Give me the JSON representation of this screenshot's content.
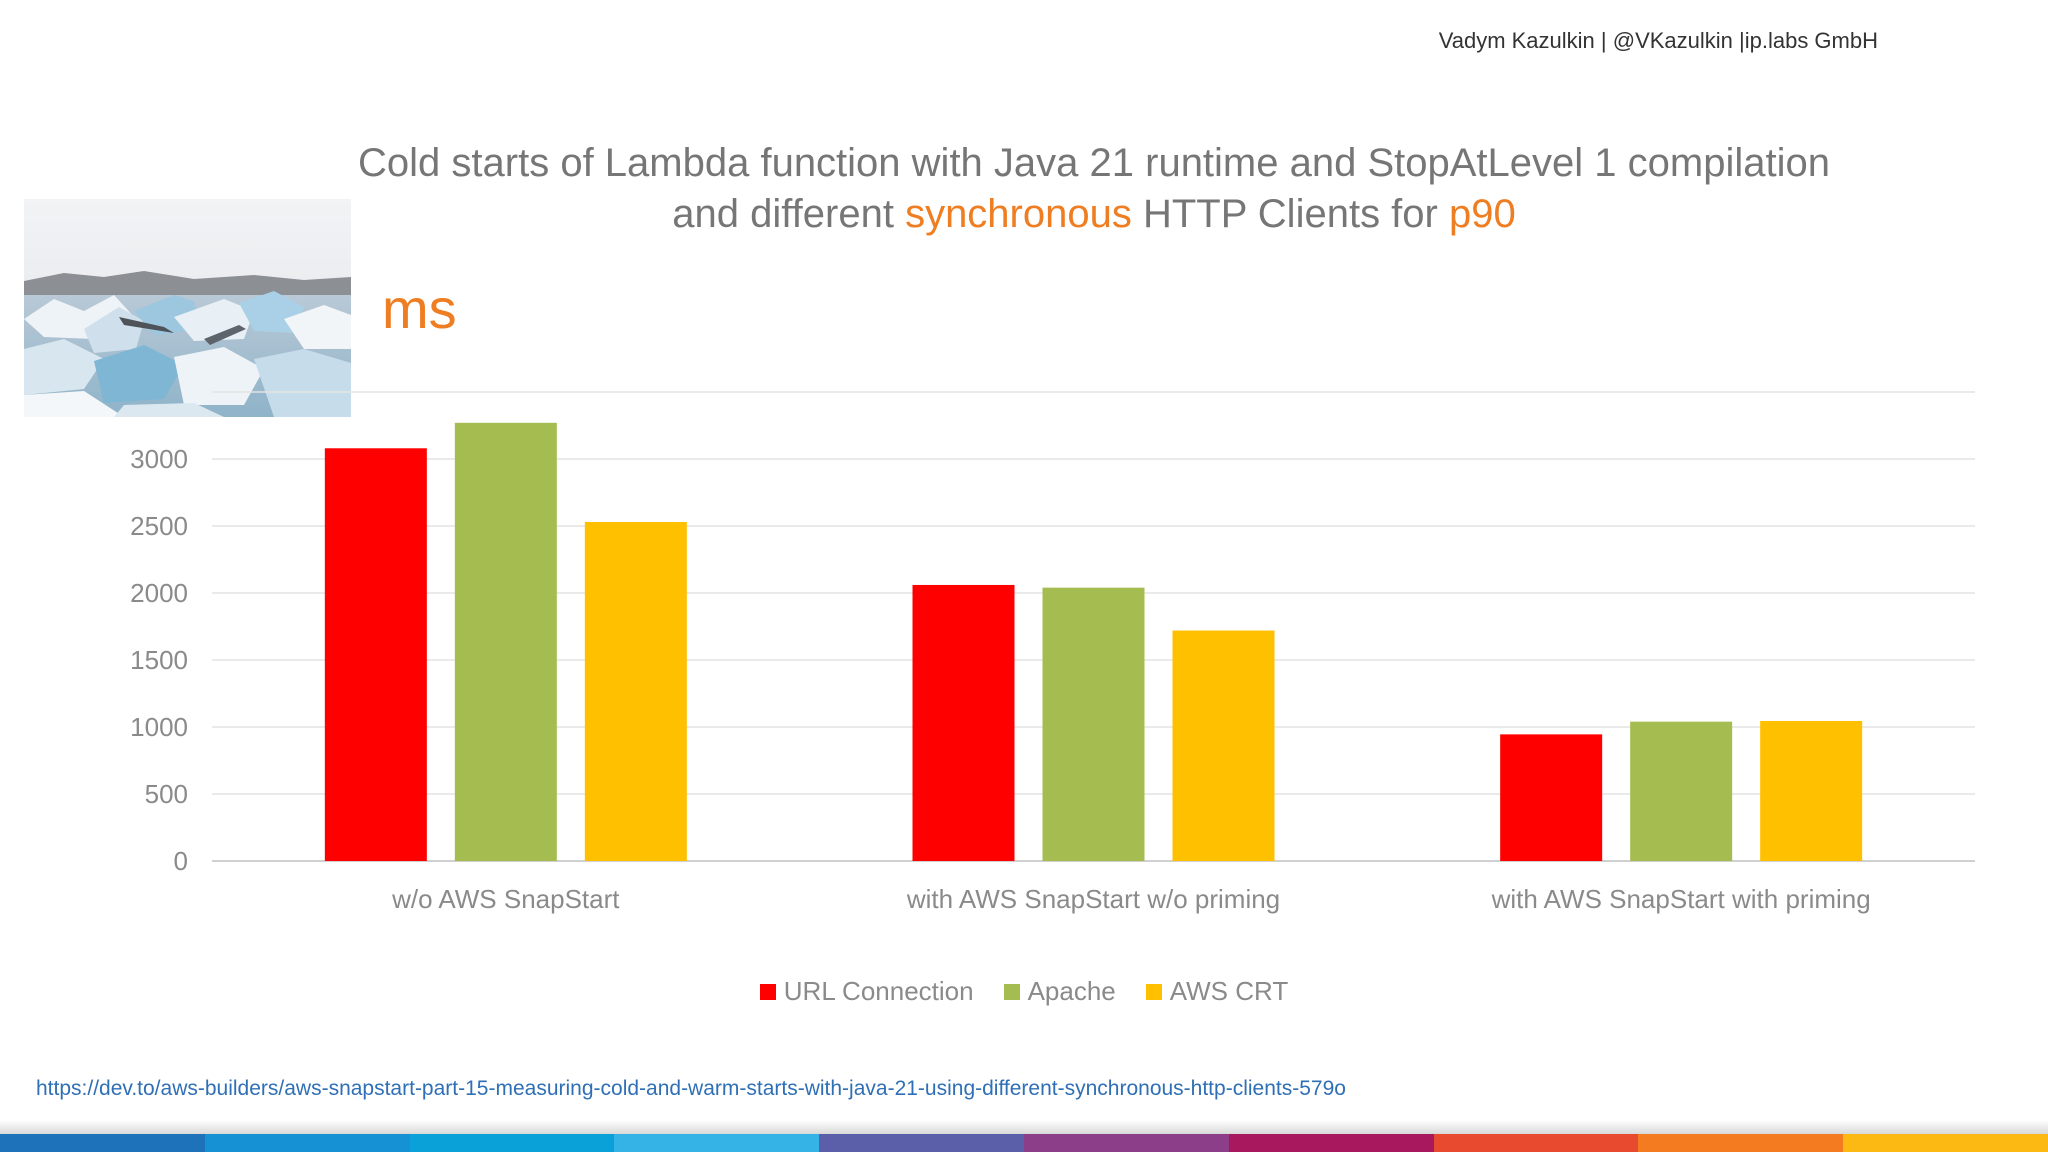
{
  "header": {
    "credit": "Vadym Kazulkin | @VKazulkin |ip.labs GmbH"
  },
  "title": {
    "line1": "Cold starts of Lambda function with Java 21 runtime and StopAtLevel 1 compilation",
    "line2_prefix": "and different ",
    "line2_accent1": "synchronous",
    "line2_middle": " HTTP Clients for ",
    "line2_accent2": "p90"
  },
  "image": {
    "subject": "glacier-ice-photo"
  },
  "chart_data": {
    "type": "bar",
    "ylabel": "ms",
    "ylim": [
      0,
      3500
    ],
    "yticks": [
      0,
      500,
      1000,
      1500,
      2000,
      2500,
      3000
    ],
    "grid": true,
    "legend_position": "bottom",
    "categories": [
      "w/o AWS SnapStart",
      "with AWS SnapStart w/o priming",
      "with AWS SnapStart with priming"
    ],
    "series": [
      {
        "name": "URL Connection",
        "color": "#ff0000",
        "values": [
          3080,
          2060,
          945
        ]
      },
      {
        "name": "Apache",
        "color": "#a5bd50",
        "values": [
          3270,
          2040,
          1040
        ]
      },
      {
        "name": "AWS CRT",
        "color": "#ffc000",
        "values": [
          2530,
          1720,
          1045
        ]
      }
    ]
  },
  "footer": {
    "link": "https://dev.to/aws-builders/aws-snapstart-part-15-measuring-cold-and-warm-starts-with-java-21-using-different-synchronous-http-clients-579o",
    "strip_colors": [
      "#1e72b9",
      "#1591d4",
      "#0aa0d8",
      "#36b3e6",
      "#5b5ea8",
      "#8c3f88",
      "#a8185e",
      "#e84a2f",
      "#f47b20",
      "#fdb913"
    ]
  }
}
